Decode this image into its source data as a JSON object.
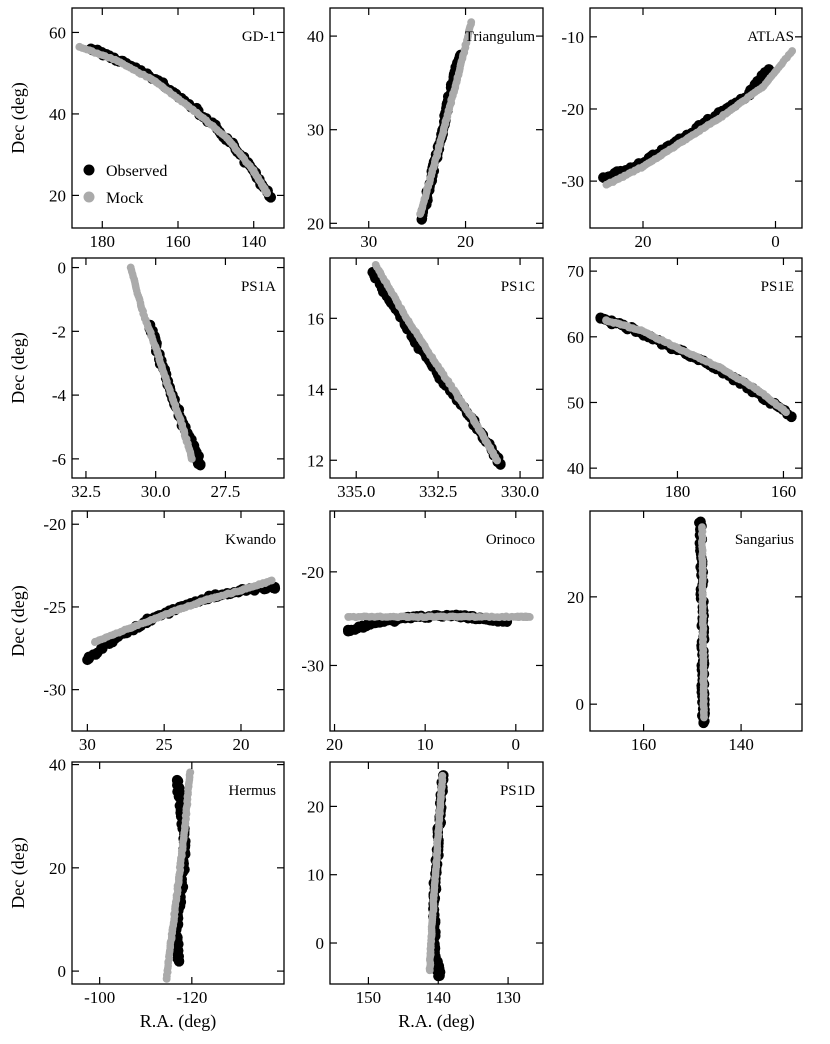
{
  "figure": {
    "ylabel": "Dec (deg)",
    "xlabel": "R.A. (deg)",
    "legend": {
      "observed": "Observed",
      "mock": "Mock",
      "placement": "lower-left of first panel"
    },
    "colors": {
      "observed": "#000000",
      "mock": "#aaaaaa"
    }
  },
  "chart_data": [
    {
      "type": "scatter",
      "title": "GD-1",
      "xlim": [
        188,
        132
      ],
      "ylim": [
        12,
        66
      ],
      "xticks": [
        180,
        160,
        140
      ],
      "yticks": [
        20,
        40,
        60
      ],
      "series": [
        {
          "name": "Observed",
          "x": [
            183,
            175,
            165,
            155,
            147,
            140,
            135.5
          ],
          "y": [
            56,
            53,
            48,
            41,
            34,
            26,
            19.5
          ]
        },
        {
          "name": "Mock",
          "x": [
            186,
            176,
            166,
            156,
            147,
            140,
            136.5
          ],
          "y": [
            56.5,
            53,
            48,
            41,
            34,
            26,
            20.5
          ]
        }
      ]
    },
    {
      "type": "scatter",
      "title": "Triangulum",
      "xlim": [
        34,
        12
      ],
      "ylim": [
        19.5,
        43
      ],
      "xticks": [
        30,
        20
      ],
      "yticks": [
        20,
        30,
        40
      ],
      "series": [
        {
          "name": "Observed",
          "x": [
            24.5,
            23.5,
            22.5,
            21.5,
            20.5
          ],
          "y": [
            20.5,
            25,
            29.5,
            34.5,
            38
          ]
        },
        {
          "name": "Mock",
          "x": [
            24.7,
            23.3,
            22,
            20.7,
            19.4
          ],
          "y": [
            21,
            26,
            31,
            36,
            41.5
          ]
        }
      ]
    },
    {
      "type": "scatter",
      "title": "ATLAS",
      "xlim": [
        28,
        -4
      ],
      "ylim": [
        -36.5,
        -6
      ],
      "xticks": [
        20,
        0
      ],
      "yticks": [
        -30,
        -20,
        -10
      ],
      "series": [
        {
          "name": "Observed",
          "x": [
            26,
            21,
            15,
            9,
            4,
            1
          ],
          "y": [
            -29.5,
            -28,
            -24.5,
            -21,
            -18,
            -14.5
          ]
        },
        {
          "name": "Mock",
          "x": [
            25.5,
            20,
            14,
            8,
            2,
            -2.5
          ],
          "y": [
            -30.5,
            -28,
            -24.5,
            -21,
            -17,
            -12
          ]
        }
      ]
    },
    {
      "type": "scatter",
      "title": "PS1A",
      "xlim": [
        33,
        25.4
      ],
      "ylim": [
        -6.6,
        0.3
      ],
      "xticks": [
        32.5,
        30.0,
        27.5
      ],
      "yticks": [
        -6,
        -4,
        -2,
        0
      ],
      "series": [
        {
          "name": "Observed",
          "x": [
            30.2,
            29.8,
            29.4,
            29.0,
            28.6,
            28.4
          ],
          "y": [
            -1.8,
            -3,
            -4,
            -5,
            -5.7,
            -6.2
          ]
        },
        {
          "name": "Mock",
          "x": [
            30.9,
            30.5,
            30.0,
            29.6,
            29.1,
            28.7
          ],
          "y": [
            0,
            -1.3,
            -2.5,
            -3.6,
            -4.8,
            -6.0
          ]
        }
      ]
    },
    {
      "type": "scatter",
      "title": "PS1C",
      "xlim": [
        335.8,
        329.3
      ],
      "ylim": [
        11.5,
        17.7
      ],
      "xticks": [
        335.0,
        332.5,
        330.0
      ],
      "yticks": [
        12,
        14,
        16
      ],
      "series": [
        {
          "name": "Observed",
          "x": [
            334.5,
            333.5,
            332.5,
            331.5,
            330.6
          ],
          "y": [
            17.3,
            15.8,
            14.4,
            13.2,
            11.9
          ]
        },
        {
          "name": "Mock",
          "x": [
            334.4,
            333.4,
            332.4,
            331.4,
            330.7
          ],
          "y": [
            17.5,
            15.9,
            14.5,
            13.1,
            12.0
          ]
        }
      ]
    },
    {
      "type": "scatter",
      "title": "PS1E",
      "xlim": [
        196.5,
        156.5
      ],
      "ylim": [
        38.5,
        72
      ],
      "xticks": [
        180,
        160
      ],
      "yticks": [
        40,
        50,
        60,
        70
      ],
      "series": [
        {
          "name": "Observed",
          "x": [
            194.5,
            188,
            180,
            172,
            165,
            158.5
          ],
          "y": [
            62.8,
            61,
            58,
            55,
            51.5,
            47.8
          ]
        },
        {
          "name": "Mock",
          "x": [
            193.5,
            187,
            180,
            172,
            165,
            159.5
          ],
          "y": [
            62.5,
            61,
            58.3,
            55.3,
            52,
            48.5
          ]
        }
      ]
    },
    {
      "type": "scatter",
      "title": "Kwando",
      "xlim": [
        31,
        17.2
      ],
      "ylim": [
        -32.5,
        -19.2
      ],
      "xticks": [
        30,
        25,
        20
      ],
      "yticks": [
        -30,
        -25,
        -20
      ],
      "series": [
        {
          "name": "Observed",
          "x": [
            30,
            28,
            26,
            24,
            22,
            20,
            17.8
          ],
          "y": [
            -28.2,
            -26.8,
            -25.8,
            -25,
            -24.4,
            -24,
            -23.8
          ]
        },
        {
          "name": "Mock",
          "x": [
            29.5,
            27,
            24.5,
            22,
            20,
            18
          ],
          "y": [
            -27.1,
            -26.2,
            -25.3,
            -24.5,
            -24,
            -23.4
          ]
        }
      ]
    },
    {
      "type": "scatter",
      "title": "Orinoco",
      "xlim": [
        20.5,
        -3
      ],
      "ylim": [
        -37,
        -13.5
      ],
      "xticks": [
        20,
        10,
        0
      ],
      "yticks": [
        -30,
        -20
      ],
      "series": [
        {
          "name": "Observed",
          "x": [
            18.5,
            15,
            11,
            7,
            4,
            1
          ],
          "y": [
            -26.2,
            -25.4,
            -24.8,
            -24.7,
            -24.9,
            -25.3
          ]
        },
        {
          "name": "Mock",
          "x": [
            18.5,
            12,
            6,
            0,
            -1.5
          ],
          "y": [
            -24.8,
            -24.8,
            -24.8,
            -24.8,
            -24.8
          ]
        }
      ]
    },
    {
      "type": "scatter",
      "title": "Sangarius",
      "xlim": [
        171,
        127.5
      ],
      "ylim": [
        -5,
        36
      ],
      "xticks": [
        160,
        140
      ],
      "yticks": [
        0,
        20
      ],
      "series": [
        {
          "name": "Observed",
          "x": [
            148.3,
            148.1,
            147.9,
            147.8,
            147.8,
            147.7
          ],
          "y": [
            34,
            25,
            16,
            8,
            2,
            -3.5
          ]
        },
        {
          "name": "Mock",
          "x": [
            148.0,
            147.9,
            147.8,
            147.7,
            147.6
          ],
          "y": [
            33,
            23,
            13,
            4,
            -2.5
          ]
        }
      ]
    },
    {
      "type": "scatter",
      "title": "Hermus",
      "xlim": [
        -94,
        -140
      ],
      "ylim": [
        -2.5,
        40.5
      ],
      "xticks": [
        -100,
        -120
      ],
      "yticks": [
        0,
        20,
        40
      ],
      "series": [
        {
          "name": "Observed",
          "x": [
            -117.2,
            -116.5,
            -117.8,
            -118.5,
            -117.8,
            -116.8
          ],
          "y": [
            2,
            8,
            16,
            24,
            31,
            37
          ]
        },
        {
          "name": "Mock",
          "x": [
            -114.5,
            -115.8,
            -117.2,
            -118.5,
            -119.6
          ],
          "y": [
            -1.5,
            8,
            18,
            28,
            38.5
          ]
        }
      ]
    },
    {
      "type": "scatter",
      "title": "PS1D",
      "xlim": [
        155.5,
        125
      ],
      "ylim": [
        -6,
        26.5
      ],
      "xticks": [
        150,
        140,
        130
      ],
      "yticks": [
        0,
        10,
        20
      ],
      "series": [
        {
          "name": "Observed",
          "x": [
            139.8,
            140.4,
            140.6,
            140.5,
            140.1,
            139.8,
            139.3
          ],
          "y": [
            -4.8,
            -2,
            3,
            8,
            13,
            18,
            24.5
          ]
        },
        {
          "name": "Mock",
          "x": [
            141.2,
            141.0,
            140.6,
            140.2,
            139.8,
            139.4
          ],
          "y": [
            -4,
            1,
            7,
            13,
            19,
            24.5
          ]
        }
      ]
    }
  ]
}
